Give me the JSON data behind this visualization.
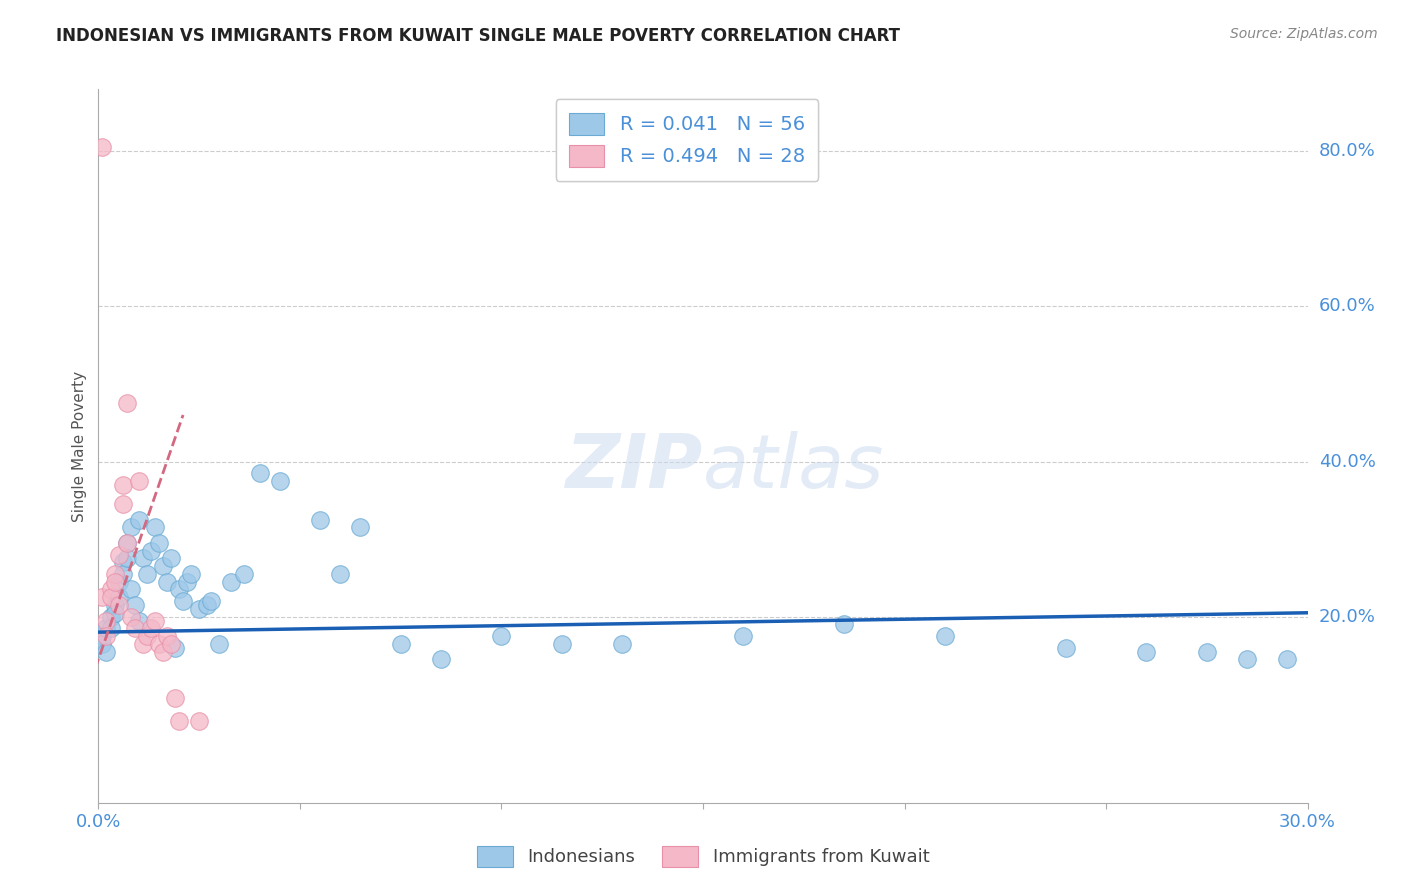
{
  "title": "INDONESIAN VS IMMIGRANTS FROM KUWAIT SINGLE MALE POVERTY CORRELATION CHART",
  "source": "Source: ZipAtlas.com",
  "ylabel": "Single Male Poverty",
  "xlim": [
    0.0,
    0.3
  ],
  "ylim": [
    -0.04,
    0.88
  ],
  "yticks_right": [
    0.2,
    0.4,
    0.6,
    0.8
  ],
  "ytick_labels_right": [
    "20.0%",
    "40.0%",
    "60.0%",
    "80.0%"
  ],
  "xticks": [
    0.0,
    0.05,
    0.1,
    0.15,
    0.2,
    0.25,
    0.3
  ],
  "xtick_labels": [
    "0.0%",
    "",
    "",
    "",
    "",
    "",
    "30.0%"
  ],
  "legend_1_label": "R = 0.041   N = 56",
  "legend_2_label": "R = 0.494   N = 28",
  "legend_label_1": "Indonesians",
  "legend_label_2": "Immigrants from Kuwait",
  "color_blue": "#9ec8e8",
  "color_blue_edge": "#6aaad4",
  "color_pink": "#f4b8c8",
  "color_pink_edge": "#e890a8",
  "color_blue_line": "#1a5fb4",
  "color_pink_line": "#d46880",
  "color_axis_right": "#4a90d9",
  "color_grid": "#cccccc",
  "indonesian_x": [
    0.001,
    0.001,
    0.002,
    0.002,
    0.003,
    0.003,
    0.004,
    0.004,
    0.005,
    0.005,
    0.006,
    0.006,
    0.007,
    0.007,
    0.008,
    0.008,
    0.009,
    0.01,
    0.01,
    0.011,
    0.012,
    0.013,
    0.014,
    0.015,
    0.016,
    0.017,
    0.018,
    0.019,
    0.02,
    0.021,
    0.022,
    0.023,
    0.025,
    0.027,
    0.028,
    0.03,
    0.033,
    0.036,
    0.04,
    0.045,
    0.055,
    0.06,
    0.065,
    0.075,
    0.085,
    0.1,
    0.115,
    0.13,
    0.16,
    0.185,
    0.21,
    0.24,
    0.26,
    0.275,
    0.285,
    0.295
  ],
  "indonesian_y": [
    0.175,
    0.165,
    0.185,
    0.155,
    0.2,
    0.185,
    0.215,
    0.205,
    0.245,
    0.225,
    0.27,
    0.255,
    0.295,
    0.275,
    0.315,
    0.235,
    0.215,
    0.325,
    0.195,
    0.275,
    0.255,
    0.285,
    0.315,
    0.295,
    0.265,
    0.245,
    0.275,
    0.16,
    0.235,
    0.22,
    0.245,
    0.255,
    0.21,
    0.215,
    0.22,
    0.165,
    0.245,
    0.255,
    0.385,
    0.375,
    0.325,
    0.255,
    0.315,
    0.165,
    0.145,
    0.175,
    0.165,
    0.165,
    0.175,
    0.19,
    0.175,
    0.16,
    0.155,
    0.155,
    0.145,
    0.145
  ],
  "kuwait_x": [
    0.001,
    0.001,
    0.002,
    0.002,
    0.003,
    0.003,
    0.004,
    0.004,
    0.005,
    0.005,
    0.006,
    0.006,
    0.007,
    0.007,
    0.008,
    0.009,
    0.01,
    0.011,
    0.012,
    0.013,
    0.014,
    0.015,
    0.016,
    0.017,
    0.018,
    0.019,
    0.02,
    0.025
  ],
  "kuwait_y": [
    0.805,
    0.225,
    0.195,
    0.175,
    0.235,
    0.225,
    0.255,
    0.245,
    0.28,
    0.215,
    0.37,
    0.345,
    0.475,
    0.295,
    0.2,
    0.185,
    0.375,
    0.165,
    0.175,
    0.185,
    0.195,
    0.165,
    0.155,
    0.175,
    0.165,
    0.095,
    0.065,
    0.065
  ],
  "blue_line_x": [
    0.0,
    0.3
  ],
  "blue_line_y": [
    0.18,
    0.205
  ],
  "pink_line_x": [
    -0.002,
    0.021
  ],
  "pink_line_y": [
    0.115,
    0.46
  ]
}
